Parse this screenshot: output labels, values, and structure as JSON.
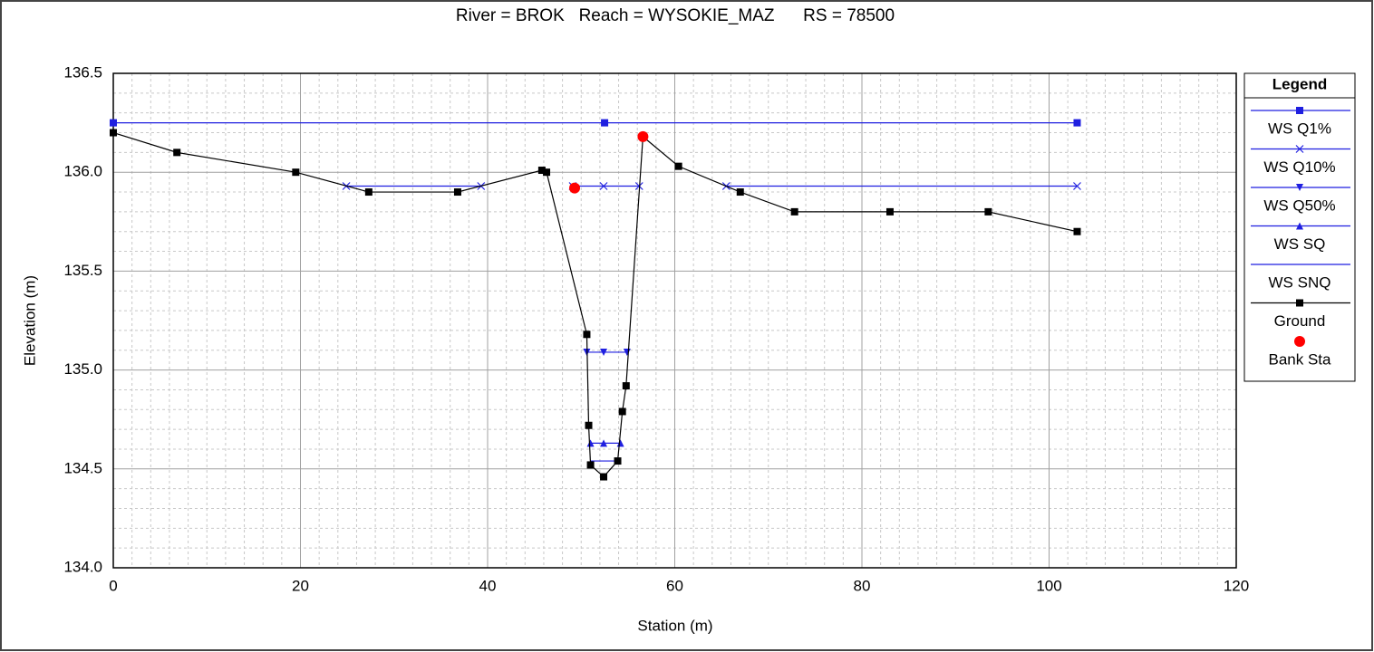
{
  "chart_data": {
    "type": "line",
    "title": "River = BROK   Reach = WYSOKIE_MAZ      RS = 78500",
    "xlabel": "Station (m)",
    "ylabel": "Elevation (m)",
    "legend_title": "Legend",
    "legend_position": "right",
    "grid": true,
    "xlim": [
      0,
      120
    ],
    "xticks": [
      0,
      20,
      40,
      60,
      80,
      100,
      120
    ],
    "ylim": [
      134,
      136.5
    ],
    "yticks": [
      {
        "value": 134,
        "label": "134.0"
      },
      {
        "value": 134.5,
        "label": "134.5"
      },
      {
        "value": 135,
        "label": "135.0"
      },
      {
        "value": 135.5,
        "label": "135.5"
      },
      {
        "value": 136,
        "label": "136.0"
      },
      {
        "value": 136.5,
        "label": "136.5"
      }
    ],
    "series": [
      {
        "name": "WS Q1%",
        "color": "#1f1fe0",
        "marker": "square",
        "line": true,
        "x": [
          0,
          52.5,
          103
        ],
        "values": [
          136.25,
          136.25,
          136.25
        ]
      },
      {
        "name": "WS Q10%",
        "color": "#1f1fe0",
        "marker": "x",
        "line": true,
        "x": [
          24.9,
          39.3,
          null,
          49.1,
          52.4,
          56.2,
          null,
          65.5,
          103
        ],
        "values": [
          135.93,
          135.93,
          null,
          135.93,
          135.93,
          135.93,
          null,
          135.93,
          135.93
        ]
      },
      {
        "name": "WS Q50%",
        "color": "#1f1fe0",
        "marker": "triangle-down",
        "line": true,
        "x": [
          50.6,
          52.4,
          54.9
        ],
        "values": [
          135.09,
          135.09,
          135.09
        ]
      },
      {
        "name": "WS SQ",
        "color": "#1f1fe0",
        "marker": "triangle-up",
        "line": true,
        "x": [
          51.0,
          52.4,
          54.2
        ],
        "values": [
          134.63,
          134.63,
          134.63
        ]
      },
      {
        "name": "WS SNQ",
        "color": "#1f1fe0",
        "marker": "none",
        "line": true,
        "x": [
          51.0,
          53.9
        ],
        "values": [
          134.54,
          134.54
        ]
      },
      {
        "name": "Ground",
        "color": "#000000",
        "marker": "square",
        "line": true,
        "x": [
          0,
          6.8,
          19.5,
          27.3,
          36.8,
          45.8,
          46.3,
          50.6,
          50.8,
          51.0,
          52.4,
          53.9,
          54.4,
          54.8,
          56.6,
          60.4,
          67.0,
          72.8,
          83.0,
          93.5,
          103.0
        ],
        "values": [
          136.2,
          136.1,
          136.0,
          135.9,
          135.9,
          136.01,
          136.0,
          135.18,
          134.72,
          134.52,
          134.46,
          134.54,
          134.79,
          134.92,
          136.18,
          136.03,
          135.9,
          135.8,
          135.8,
          135.8,
          135.7
        ]
      },
      {
        "name": "Bank Sta",
        "color": "#ff0000",
        "marker": "circle",
        "line": false,
        "x": [
          49.3,
          56.6
        ],
        "values": [
          135.92,
          136.18
        ]
      }
    ]
  }
}
